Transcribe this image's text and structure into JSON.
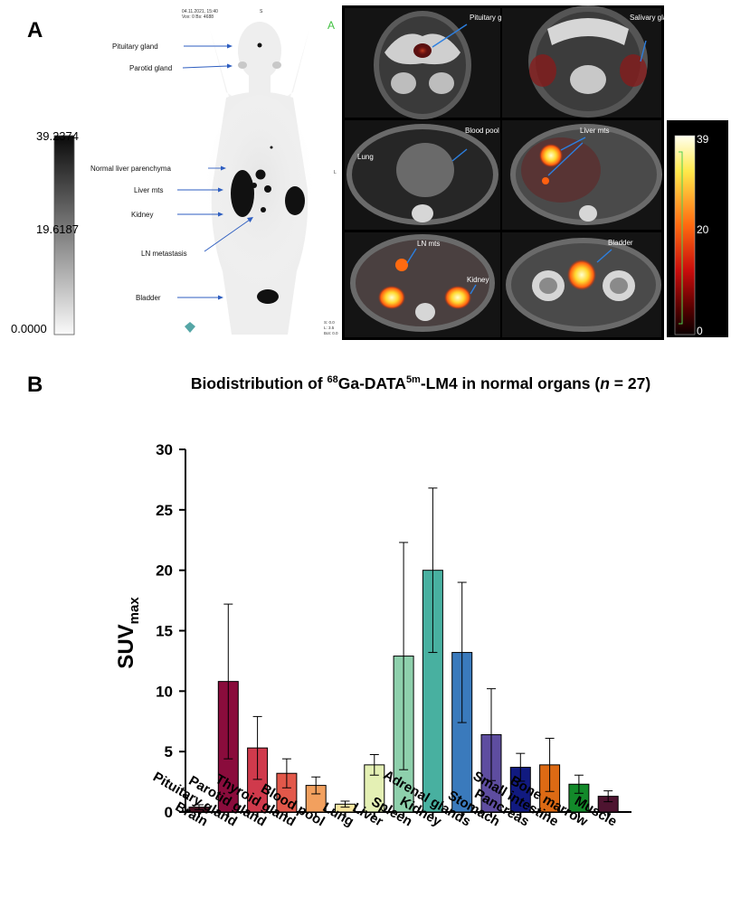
{
  "panel_a": {
    "letter": "A",
    "mip": {
      "header_line1": "04.11.2021, 15:40",
      "header_line2": "Vox: 0   Bs: 4688",
      "top_marker": "S",
      "side_marker": "L",
      "corner_letter": "A",
      "footer_lines": [
        "S: 0.0",
        "L: 3.5",
        "Bot: 0.0"
      ],
      "organ_labels": [
        "Pituitary gland",
        "Parotid gland",
        "Normal liver parenchyma",
        "Liver mts",
        "Kidney",
        "LN metastasis",
        "Bladder"
      ]
    },
    "grayscale_bar": {
      "max": "39.2374",
      "mid": "19.6187",
      "min": "0.0000"
    },
    "color_bar": {
      "max": "39",
      "mid": "20",
      "min": "0"
    },
    "ct_labels": {
      "pituitary": "Pituitary gland",
      "salivary": "Salivary glands",
      "blood_pool": "Blood pool",
      "lung": "Lung",
      "liver_mts": "Liver mts",
      "ln_mts": "LN mts",
      "kidney": "Kidney",
      "bladder": "Bladder"
    }
  },
  "panel_b": {
    "letter": "B",
    "title_pre": "Biodistribution of ",
    "title_sup1": "68",
    "title_mid": "Ga-DATA",
    "title_sup2": "5m",
    "title_post": "-LM4 in normal organs (",
    "title_n": "n",
    "title_end": " = 27)"
  },
  "chart_data": {
    "type": "bar",
    "title": "Biodistribution of 68Ga-DATA5m-LM4 in normal organs (n = 27)",
    "xlabel": "",
    "ylabel": "SUVmax",
    "ylabel_main": "SUV",
    "ylabel_sub": "max",
    "ylim": [
      0,
      30
    ],
    "yticks": [
      0,
      5,
      10,
      15,
      20,
      25,
      30
    ],
    "categories": [
      "Brain",
      "Pituitary gland",
      "Parotid gland",
      "Thyroid gland",
      "Blood pool",
      "Lung",
      "Liver",
      "Spleen",
      "Kidney",
      "Adrenal glands",
      "Stomach",
      "Pancreas",
      "Small intestine",
      "Bone marrow",
      "Muscle"
    ],
    "values": [
      0.4,
      10.8,
      5.3,
      3.2,
      2.2,
      0.65,
      3.9,
      12.9,
      20.0,
      13.2,
      6.4,
      3.7,
      3.9,
      2.3,
      1.3
    ],
    "error": [
      0.2,
      6.4,
      2.6,
      1.2,
      0.7,
      0.25,
      0.85,
      9.4,
      6.8,
      5.8,
      3.8,
      1.15,
      2.2,
      0.75,
      0.45
    ],
    "colors": [
      "#4a1020",
      "#8a0c3c",
      "#d03a4c",
      "#e2584a",
      "#f2a05e",
      "#f8e6a0",
      "#e4f0b4",
      "#8ed0ac",
      "#48b0a0",
      "#3a7abc",
      "#5e4da0",
      "#111a80",
      "#dd6a14",
      "#138a2a",
      "#4e1430"
    ],
    "grid": false
  }
}
